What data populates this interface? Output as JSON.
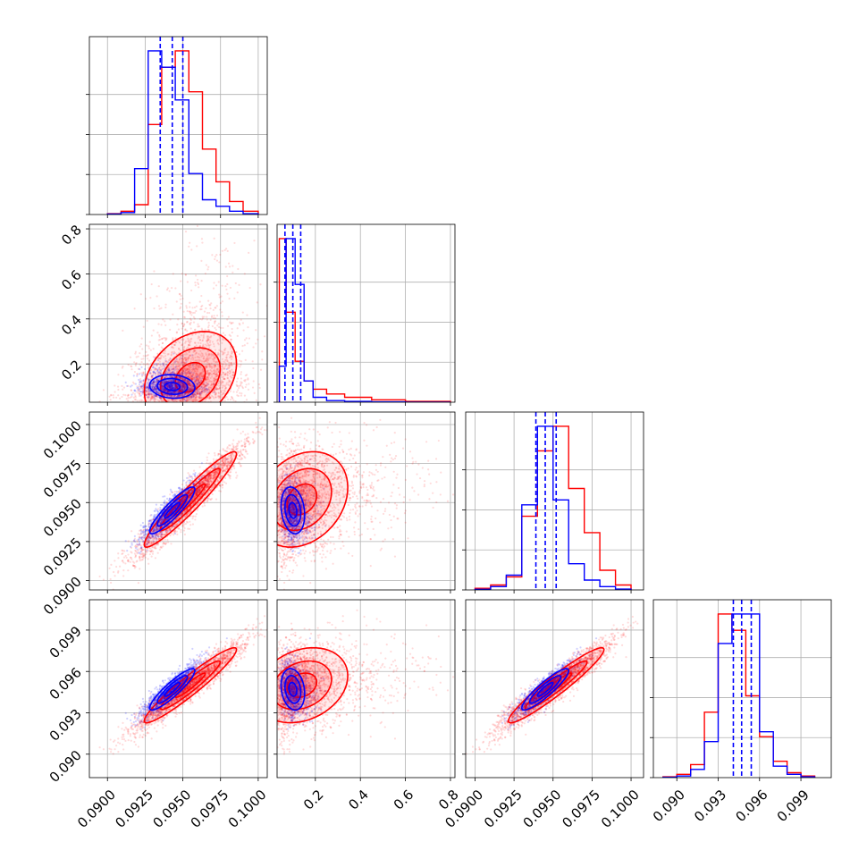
{
  "chart_data": {
    "type": "scatter",
    "title": "",
    "colors": {
      "series_a": "#0000ff",
      "series_b": "#ff0000",
      "grid": "#b0b0b0",
      "frame": "#000000"
    },
    "params": [
      {
        "range": [
          0.0888,
          0.1006
        ]
      },
      {
        "range": [
          0.03,
          0.82
        ]
      },
      {
        "range": [
          0.0894,
          0.1008
        ]
      },
      {
        "range": [
          0.0883,
          0.1012
        ]
      }
    ],
    "x_tick_labels": [
      [
        "0.0900",
        "0.0925",
        "0.0950",
        "0.0975",
        "0.1000"
      ],
      [
        "0.2",
        "0.4",
        "0.6",
        "0.8"
      ],
      [
        "0.0900",
        "0.0925",
        "0.0950",
        "0.0975",
        "0.1000"
      ],
      [
        "0.090",
        "0.093",
        "0.096",
        "0.099"
      ]
    ],
    "y_tick_labels": [
      [],
      [
        "0.2",
        "0.4",
        "0.6",
        "0.8"
      ],
      [
        "0.0900",
        "0.0925",
        "0.0950",
        "0.0975",
        "0.1000"
      ],
      [
        "0.090",
        "0.093",
        "0.096",
        "0.099"
      ]
    ],
    "series": [
      {
        "color": "#0000ff",
        "mean": [
          0.0943,
          0.1,
          0.0945,
          0.0947
        ],
        "sd": [
          0.001,
          0.035,
          0.001,
          0.001
        ],
        "corr": [
          [
            1,
            -0.1,
            0.9,
            0.9
          ],
          [
            -0.1,
            1,
            -0.2,
            -0.2
          ],
          [
            0.9,
            -0.2,
            1,
            0.9
          ],
          [
            0.9,
            -0.2,
            0.9,
            1
          ]
        ],
        "quantiles": [
          [
            0.0935,
            0.0943,
            0.095
          ],
          [
            0.065,
            0.1,
            0.135
          ],
          [
            0.0939,
            0.0945,
            0.0952
          ],
          [
            0.0941,
            0.0947,
            0.0954
          ]
        ],
        "hist": [
          {
            "edges": [
              0.09,
              0.0909,
              0.0918,
              0.0927,
              0.0936,
              0.0945,
              0.0954,
              0.0963,
              0.0972,
              0.0981,
              0.099,
              0.1
            ],
            "values": [
              0.003,
              0.012,
              0.28,
              1.0,
              0.9,
              0.7,
              0.25,
              0.09,
              0.05,
              0.02,
              0.005
            ]
          },
          {
            "edges": [
              0.04,
              0.07,
              0.11,
              0.15,
              0.19,
              0.25,
              0.33,
              0.45,
              0.6,
              0.8
            ],
            "values": [
              0.22,
              1.0,
              0.72,
              0.13,
              0.03,
              0.01,
              0.005,
              0.002,
              0.0
            ]
          },
          {
            "edges": [
              0.09,
              0.091,
              0.092,
              0.093,
              0.094,
              0.095,
              0.096,
              0.097,
              0.098,
              0.099,
              0.1
            ],
            "values": [
              0.004,
              0.02,
              0.09,
              0.52,
              1.0,
              0.55,
              0.16,
              0.06,
              0.02,
              0.005
            ]
          },
          {
            "edges": [
              0.089,
              0.09,
              0.091,
              0.092,
              0.093,
              0.094,
              0.095,
              0.096,
              0.097,
              0.098,
              0.099,
              0.1
            ],
            "values": [
              0.002,
              0.01,
              0.05,
              0.22,
              0.82,
              1.0,
              1.0,
              0.28,
              0.07,
              0.02,
              0.005
            ]
          }
        ]
      },
      {
        "color": "#ff0000",
        "mean": [
          0.0955,
          0.14,
          0.0952,
          0.095
        ],
        "sd": [
          0.0018,
          0.12,
          0.0018,
          0.0016
        ],
        "corr": [
          [
            1,
            0.3,
            0.95,
            0.95
          ],
          [
            0.3,
            1,
            0.25,
            0.25
          ],
          [
            0.95,
            0.25,
            1,
            0.95
          ],
          [
            0.95,
            0.25,
            0.95,
            1
          ]
        ],
        "quantiles": [],
        "hist": [
          {
            "edges": [
              0.09,
              0.0909,
              0.0918,
              0.0927,
              0.0936,
              0.0945,
              0.0954,
              0.0963,
              0.0972,
              0.0981,
              0.099,
              0.1
            ],
            "values": [
              0.005,
              0.02,
              0.06,
              0.55,
              0.9,
              1.0,
              0.75,
              0.4,
              0.2,
              0.08,
              0.02
            ]
          },
          {
            "edges": [
              0.04,
              0.07,
              0.11,
              0.15,
              0.19,
              0.25,
              0.33,
              0.45,
              0.6,
              0.8
            ],
            "values": [
              1.0,
              0.55,
              0.25,
              0.13,
              0.08,
              0.05,
              0.03,
              0.015,
              0.005
            ]
          },
          {
            "edges": [
              0.09,
              0.091,
              0.092,
              0.093,
              0.094,
              0.095,
              0.096,
              0.097,
              0.098,
              0.099,
              0.1
            ],
            "values": [
              0.01,
              0.03,
              0.08,
              0.45,
              0.85,
              1.0,
              0.62,
              0.35,
              0.12,
              0.03
            ]
          },
          {
            "edges": [
              0.089,
              0.09,
              0.091,
              0.092,
              0.093,
              0.094,
              0.095,
              0.096,
              0.097,
              0.098,
              0.099,
              0.1
            ],
            "values": [
              0.005,
              0.02,
              0.08,
              0.4,
              1.0,
              0.9,
              0.5,
              0.25,
              0.1,
              0.03,
              0.01
            ]
          }
        ]
      }
    ],
    "grid": true
  }
}
